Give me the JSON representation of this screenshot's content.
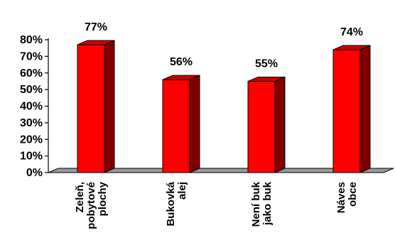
{
  "chart_data": {
    "type": "bar",
    "style": "3d-column",
    "categories": [
      [
        "Zeleň,",
        "pobytové",
        "plochy"
      ],
      [
        "Bukovká",
        "alej"
      ],
      [
        "Není buk",
        "jako buk"
      ],
      [
        "Náves",
        "obce"
      ]
    ],
    "values": [
      77,
      56,
      55,
      74
    ],
    "data_labels": [
      "77%",
      "56%",
      "55%",
      "74%"
    ],
    "y_ticks": [
      "0%",
      "10%",
      "20%",
      "30%",
      "40%",
      "50%",
      "60%",
      "70%",
      "80%"
    ],
    "ylim": [
      0,
      80
    ],
    "grid": false,
    "legend": "none",
    "colors": {
      "bar_front": "#ff0000",
      "bar_top": "#cc0000",
      "bar_side": "#800000",
      "floor": "#999999",
      "axis": "#000000"
    }
  }
}
